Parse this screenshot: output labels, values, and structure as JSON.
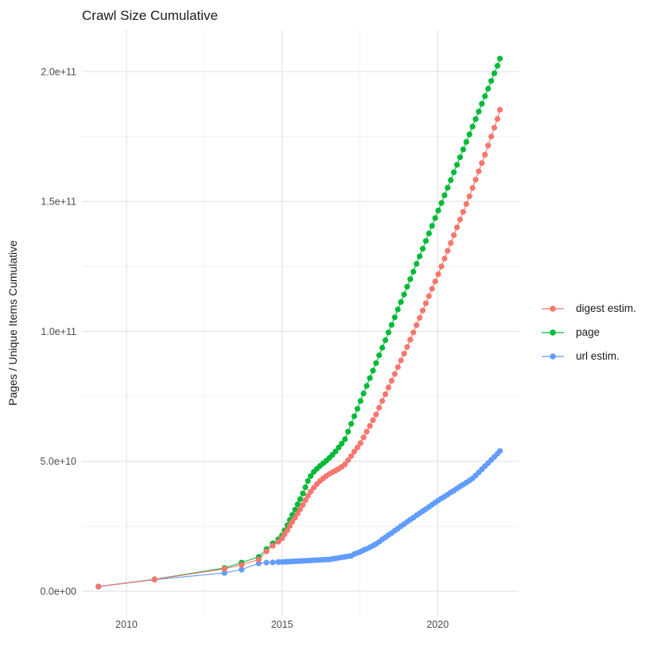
{
  "title": "Crawl Size Cumulative",
  "chart_data": {
    "type": "scatter",
    "title": "Crawl Size Cumulative",
    "xlabel": "",
    "ylabel": "Pages / Unique Items Cumulative",
    "x_ticks": [
      2010,
      2015,
      2020
    ],
    "x_tick_labels": [
      "2010",
      "2015",
      "2020"
    ],
    "x_minor_ticks": [
      2012.5,
      2017.5
    ],
    "y_ticks_e9": [
      0,
      50,
      100,
      150,
      200
    ],
    "y_tick_labels": [
      "0.0e+00",
      "5.0e+10",
      "1.0e+11",
      "1.5e+11",
      "2.0e+11"
    ],
    "y_minor_ticks_e9": [
      25,
      75,
      125,
      175
    ],
    "xlim": [
      2008.57,
      2022.6
    ],
    "ylim_e9": [
      -9.8,
      215.9
    ],
    "grid": true,
    "legend_position": "right",
    "y_unit": "1e9 (values below are in billions; axis shows scientific notation)",
    "series": [
      {
        "name": "digest estim.",
        "color": "#F8766D",
        "z": 3,
        "points": [
          [
            2009.1,
            1.8
          ],
          [
            2010.9,
            4.5
          ],
          [
            2013.15,
            8.6
          ],
          [
            2013.7,
            10.1
          ],
          [
            2014.25,
            12.2
          ],
          [
            2014.5,
            15.3
          ],
          [
            2014.7,
            17.5
          ],
          [
            2014.88,
            19.0
          ],
          [
            2015.0,
            20.3
          ],
          [
            2015.08,
            21.9
          ],
          [
            2015.17,
            23.5
          ],
          [
            2015.25,
            25.1
          ],
          [
            2015.33,
            26.7
          ],
          [
            2015.42,
            28.3
          ],
          [
            2015.5,
            29.9
          ],
          [
            2015.58,
            31.5
          ],
          [
            2015.67,
            33.2
          ],
          [
            2015.75,
            35.0
          ],
          [
            2015.83,
            36.7
          ],
          [
            2015.92,
            38.3
          ],
          [
            2016.02,
            39.8
          ],
          [
            2016.12,
            41.2
          ],
          [
            2016.22,
            42.4
          ],
          [
            2016.32,
            43.4
          ],
          [
            2016.42,
            44.3
          ],
          [
            2016.52,
            45.1
          ],
          [
            2016.62,
            45.8
          ],
          [
            2016.72,
            46.4
          ],
          [
            2016.82,
            47.1
          ],
          [
            2016.92,
            47.9
          ],
          [
            2017.02,
            48.8
          ],
          [
            2017.12,
            50.4
          ],
          [
            2017.22,
            52.0
          ],
          [
            2017.32,
            53.7
          ],
          [
            2017.42,
            55.3
          ],
          [
            2017.52,
            57.0
          ],
          [
            2017.62,
            59.2
          ],
          [
            2017.72,
            61.4
          ],
          [
            2017.82,
            63.6
          ],
          [
            2017.92,
            65.8
          ],
          [
            2018.02,
            68.0
          ],
          [
            2018.12,
            70.6
          ],
          [
            2018.22,
            73.2
          ],
          [
            2018.32,
            75.8
          ],
          [
            2018.42,
            78.4
          ],
          [
            2018.52,
            81.0
          ],
          [
            2018.62,
            83.6
          ],
          [
            2018.72,
            86.2
          ],
          [
            2018.82,
            88.8
          ],
          [
            2018.92,
            91.4
          ],
          [
            2019.02,
            94.0
          ],
          [
            2019.12,
            96.8
          ],
          [
            2019.22,
            99.6
          ],
          [
            2019.32,
            102.4
          ],
          [
            2019.42,
            105.2
          ],
          [
            2019.52,
            108.0
          ],
          [
            2019.62,
            110.8
          ],
          [
            2019.72,
            113.6
          ],
          [
            2019.82,
            116.4
          ],
          [
            2019.92,
            119.2
          ],
          [
            2020.02,
            122.0
          ],
          [
            2020.12,
            125.0
          ],
          [
            2020.22,
            128.0
          ],
          [
            2020.32,
            131.0
          ],
          [
            2020.42,
            134.0
          ],
          [
            2020.52,
            137.0
          ],
          [
            2020.62,
            140.0
          ],
          [
            2020.72,
            143.0
          ],
          [
            2020.82,
            146.0
          ],
          [
            2020.92,
            149.0
          ],
          [
            2021.02,
            152.0
          ],
          [
            2021.12,
            155.2
          ],
          [
            2021.22,
            158.4
          ],
          [
            2021.32,
            161.6
          ],
          [
            2021.42,
            164.8
          ],
          [
            2021.52,
            168.0
          ],
          [
            2021.62,
            171.5
          ],
          [
            2021.72,
            175.0
          ],
          [
            2021.82,
            178.4
          ],
          [
            2021.92,
            181.8
          ],
          [
            2022.0,
            185.3
          ]
        ]
      },
      {
        "name": "page",
        "color": "#00BA38",
        "z": 1,
        "points": [
          [
            2009.1,
            1.8
          ],
          [
            2010.9,
            4.6
          ],
          [
            2013.15,
            8.9
          ],
          [
            2013.7,
            11.0
          ],
          [
            2014.25,
            13.2
          ],
          [
            2014.5,
            16.2
          ],
          [
            2014.7,
            18.4
          ],
          [
            2014.88,
            20.0
          ],
          [
            2015.0,
            21.5
          ],
          [
            2015.08,
            23.4
          ],
          [
            2015.17,
            25.4
          ],
          [
            2015.25,
            27.4
          ],
          [
            2015.33,
            29.4
          ],
          [
            2015.42,
            31.4
          ],
          [
            2015.5,
            33.4
          ],
          [
            2015.58,
            35.4
          ],
          [
            2015.67,
            37.6
          ],
          [
            2015.75,
            40.0
          ],
          [
            2015.83,
            42.4
          ],
          [
            2015.92,
            44.3
          ],
          [
            2016.02,
            45.9
          ],
          [
            2016.12,
            47.1
          ],
          [
            2016.22,
            48.2
          ],
          [
            2016.32,
            49.2
          ],
          [
            2016.42,
            50.2
          ],
          [
            2016.52,
            51.3
          ],
          [
            2016.62,
            52.5
          ],
          [
            2016.72,
            53.8
          ],
          [
            2016.82,
            55.3
          ],
          [
            2016.92,
            56.8
          ],
          [
            2017.02,
            58.5
          ],
          [
            2017.12,
            61.4
          ],
          [
            2017.22,
            64.4
          ],
          [
            2017.32,
            67.3
          ],
          [
            2017.42,
            70.2
          ],
          [
            2017.52,
            73.2
          ],
          [
            2017.62,
            76.1
          ],
          [
            2017.72,
            79.0
          ],
          [
            2017.82,
            82.0
          ],
          [
            2017.92,
            84.9
          ],
          [
            2018.02,
            87.8
          ],
          [
            2018.12,
            90.8
          ],
          [
            2018.22,
            93.7
          ],
          [
            2018.32,
            96.6
          ],
          [
            2018.42,
            99.6
          ],
          [
            2018.52,
            102.5
          ],
          [
            2018.62,
            105.4
          ],
          [
            2018.72,
            108.4
          ],
          [
            2018.82,
            111.3
          ],
          [
            2018.92,
            114.2
          ],
          [
            2019.02,
            117.2
          ],
          [
            2019.12,
            120.1
          ],
          [
            2019.22,
            123.0
          ],
          [
            2019.32,
            126.0
          ],
          [
            2019.42,
            128.9
          ],
          [
            2019.52,
            131.8
          ],
          [
            2019.62,
            134.8
          ],
          [
            2019.72,
            137.7
          ],
          [
            2019.82,
            140.6
          ],
          [
            2019.92,
            143.6
          ],
          [
            2020.02,
            146.5
          ],
          [
            2020.12,
            149.4
          ],
          [
            2020.22,
            152.4
          ],
          [
            2020.32,
            155.3
          ],
          [
            2020.42,
            158.2
          ],
          [
            2020.52,
            161.2
          ],
          [
            2020.62,
            164.1
          ],
          [
            2020.72,
            167.0
          ],
          [
            2020.82,
            170.0
          ],
          [
            2020.92,
            172.9
          ],
          [
            2021.02,
            175.8
          ],
          [
            2021.12,
            178.8
          ],
          [
            2021.22,
            181.7
          ],
          [
            2021.32,
            184.6
          ],
          [
            2021.42,
            187.6
          ],
          [
            2021.52,
            190.5
          ],
          [
            2021.62,
            193.4
          ],
          [
            2021.72,
            196.4
          ],
          [
            2021.82,
            199.3
          ],
          [
            2021.92,
            202.2
          ],
          [
            2022.0,
            205.0
          ]
        ]
      },
      {
        "name": "url estim.",
        "color": "#619CFF",
        "z": 2,
        "points": [
          [
            2009.1,
            1.7
          ],
          [
            2010.9,
            4.4
          ],
          [
            2013.15,
            7.0
          ],
          [
            2013.7,
            8.3
          ],
          [
            2014.25,
            10.7
          ],
          [
            2014.5,
            11.0
          ],
          [
            2014.7,
            11.1
          ],
          [
            2014.88,
            11.2
          ],
          [
            2015.0,
            11.25
          ],
          [
            2015.08,
            11.3
          ],
          [
            2015.17,
            11.35
          ],
          [
            2015.25,
            11.4
          ],
          [
            2015.33,
            11.45
          ],
          [
            2015.42,
            11.5
          ],
          [
            2015.5,
            11.55
          ],
          [
            2015.58,
            11.6
          ],
          [
            2015.67,
            11.65
          ],
          [
            2015.75,
            11.7
          ],
          [
            2015.83,
            11.75
          ],
          [
            2015.92,
            11.8
          ],
          [
            2016.02,
            11.9
          ],
          [
            2016.12,
            11.95
          ],
          [
            2016.22,
            12.0
          ],
          [
            2016.32,
            12.1
          ],
          [
            2016.42,
            12.15
          ],
          [
            2016.52,
            12.2
          ],
          [
            2016.62,
            12.4
          ],
          [
            2016.72,
            12.6
          ],
          [
            2016.82,
            12.8
          ],
          [
            2016.92,
            13.0
          ],
          [
            2017.02,
            13.2
          ],
          [
            2017.12,
            13.4
          ],
          [
            2017.22,
            13.6
          ],
          [
            2017.32,
            14.3
          ],
          [
            2017.42,
            14.7
          ],
          [
            2017.52,
            15.2
          ],
          [
            2017.62,
            15.8
          ],
          [
            2017.72,
            16.3
          ],
          [
            2017.82,
            16.9
          ],
          [
            2017.92,
            17.5
          ],
          [
            2018.02,
            18.2
          ],
          [
            2018.12,
            19.0
          ],
          [
            2018.22,
            19.9
          ],
          [
            2018.32,
            20.7
          ],
          [
            2018.42,
            21.6
          ],
          [
            2018.52,
            22.4
          ],
          [
            2018.62,
            23.3
          ],
          [
            2018.72,
            24.1
          ],
          [
            2018.82,
            25.0
          ],
          [
            2018.92,
            25.8
          ],
          [
            2019.02,
            26.7
          ],
          [
            2019.12,
            27.5
          ],
          [
            2019.22,
            28.3
          ],
          [
            2019.32,
            29.2
          ],
          [
            2019.42,
            30.0
          ],
          [
            2019.52,
            30.8
          ],
          [
            2019.62,
            31.6
          ],
          [
            2019.72,
            32.4
          ],
          [
            2019.82,
            33.3
          ],
          [
            2019.92,
            34.1
          ],
          [
            2020.02,
            34.9
          ],
          [
            2020.12,
            35.7
          ],
          [
            2020.22,
            36.4
          ],
          [
            2020.32,
            37.2
          ],
          [
            2020.42,
            38.0
          ],
          [
            2020.52,
            38.7
          ],
          [
            2020.62,
            39.5
          ],
          [
            2020.72,
            40.3
          ],
          [
            2020.82,
            41.0
          ],
          [
            2020.92,
            41.8
          ],
          [
            2021.02,
            42.6
          ],
          [
            2021.12,
            43.4
          ],
          [
            2021.22,
            44.5
          ],
          [
            2021.32,
            45.7
          ],
          [
            2021.42,
            46.9
          ],
          [
            2021.52,
            48.1
          ],
          [
            2021.62,
            49.3
          ],
          [
            2021.72,
            50.5
          ],
          [
            2021.82,
            51.7
          ],
          [
            2021.92,
            52.9
          ],
          [
            2022.0,
            54.0
          ]
        ]
      }
    ],
    "style": {
      "grid_major_color": "#E3E3E3",
      "grid_minor_color": "#EFEFEF",
      "background": "#ffffff",
      "marker_radius": 3.6,
      "line_width": 1.1
    }
  }
}
